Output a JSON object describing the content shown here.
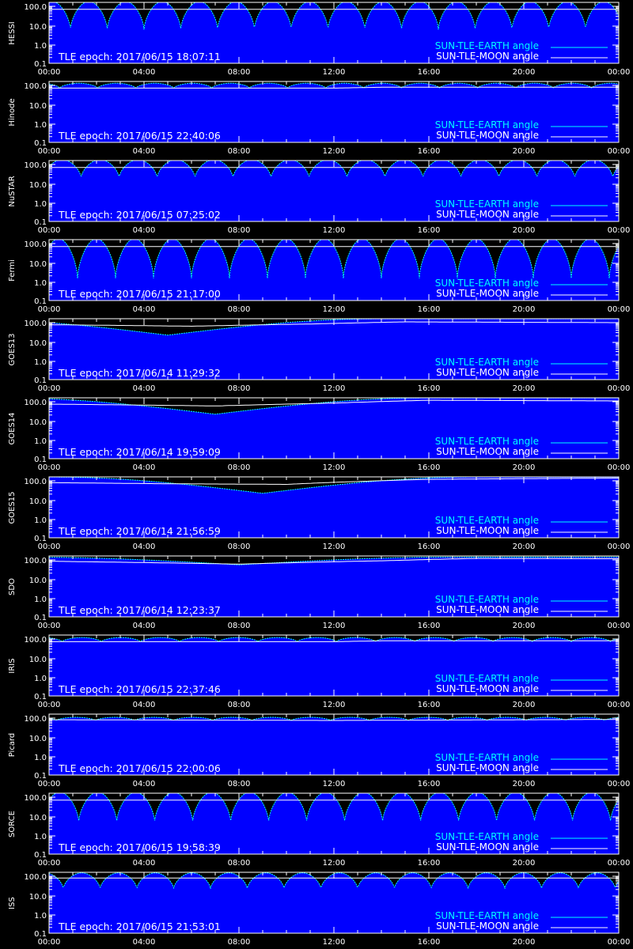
{
  "legend": {
    "earth_label": "SUN-TLE-EARTH angle",
    "moon_label": "SUN-TLE-MOON angle"
  },
  "colors": {
    "background": "#000000",
    "earth_fill": "#0000ff",
    "earth_edge": "#00ffff",
    "moon": "#ffffff",
    "axis": "#ffffff",
    "earth_label": "#00ffff",
    "moon_label": "#ffffff"
  },
  "chart_data": [
    {
      "type": "line",
      "scale": "log",
      "ylim": [
        0.1,
        180
      ],
      "xlim": [
        "00:00",
        "24:00"
      ],
      "ylabel": "HESSI",
      "epoch_text": "TLE epoch: 2017/06/15 18:07:11",
      "yticks": [
        "100.0",
        "10.0",
        "1.0",
        "0.1"
      ],
      "xticks": [
        "00:00",
        "04:00",
        "08:00",
        "12:00",
        "16:00",
        "20:00",
        "00:00"
      ],
      "earth": {
        "style": "orbital",
        "period_h": 1.55,
        "phase_h": 0.9,
        "min": 6,
        "max": 178
      },
      "moon": {
        "points": [
          [
            0,
            70
          ],
          [
            24,
            70
          ]
        ]
      }
    },
    {
      "type": "line",
      "scale": "log",
      "ylim": [
        0.1,
        180
      ],
      "xlim": [
        "00:00",
        "24:00"
      ],
      "ylabel": "Hinode",
      "epoch_text": "TLE epoch: 2017/06/15 22:40:06",
      "yticks": [
        "100.0",
        "10.0",
        "1.0",
        "0.1"
      ],
      "xticks": [
        "00:00",
        "04:00",
        "08:00",
        "12:00",
        "16:00",
        "20:00",
        "00:00"
      ],
      "earth": {
        "style": "orbital",
        "period_h": 1.6,
        "phase_h": 0.45,
        "min": 72,
        "max": 130
      },
      "moon": {
        "points": [
          [
            0,
            72
          ],
          [
            12,
            72
          ],
          [
            14,
            80
          ],
          [
            24,
            80
          ]
        ]
      }
    },
    {
      "type": "line",
      "scale": "log",
      "ylim": [
        0.1,
        180
      ],
      "xlim": [
        "00:00",
        "24:00"
      ],
      "ylabel": "NuSTAR",
      "epoch_text": "TLE epoch: 2017/06/15 07:25:02",
      "yticks": [
        "100.0",
        "10.0",
        "1.0",
        "0.1"
      ],
      "xticks": [
        "00:00",
        "04:00",
        "08:00",
        "12:00",
        "16:00",
        "20:00",
        "00:00"
      ],
      "earth": {
        "style": "orbital",
        "period_h": 1.6,
        "phase_h": 1.35,
        "min": 20,
        "max": 178
      },
      "moon": {
        "points": [
          [
            0,
            70
          ],
          [
            24,
            70
          ]
        ]
      }
    },
    {
      "type": "line",
      "scale": "log",
      "ylim": [
        0.1,
        180
      ],
      "xlim": [
        "00:00",
        "24:00"
      ],
      "ylabel": "Fermi",
      "epoch_text": "TLE epoch: 2017/06/15 21:17:00",
      "yticks": [
        "100.0",
        "10.0",
        "1.0",
        "0.1"
      ],
      "xticks": [
        "00:00",
        "04:00",
        "08:00",
        "12:00",
        "16:00",
        "20:00",
        "00:00"
      ],
      "earth": {
        "style": "orbital",
        "period_h": 1.6,
        "phase_h": 1.2,
        "min": 1.5,
        "max": 178
      },
      "moon": {
        "points": [
          [
            0,
            70
          ],
          [
            24,
            70
          ]
        ]
      }
    },
    {
      "type": "line",
      "scale": "log",
      "ylim": [
        0.1,
        180
      ],
      "xlim": [
        "00:00",
        "24:00"
      ],
      "ylabel": "GOES13",
      "epoch_text": "TLE epoch: 2017/06/14 11:29:32",
      "yticks": [
        "100.0",
        "10.0",
        "1.0",
        "0.1"
      ],
      "xticks": [
        "00:00",
        "04:00",
        "08:00",
        "12:00",
        "16:00",
        "20:00",
        "00:00"
      ],
      "earth": {
        "style": "diurnal",
        "trough_h": 5,
        "min": 22,
        "max": 160
      },
      "moon": {
        "points": [
          [
            0,
            78
          ],
          [
            6,
            65
          ],
          [
            11,
            85
          ],
          [
            15,
            110
          ],
          [
            24,
            100
          ]
        ]
      }
    },
    {
      "type": "line",
      "scale": "log",
      "ylim": [
        0.1,
        180
      ],
      "xlim": [
        "00:00",
        "24:00"
      ],
      "ylabel": "GOES14",
      "epoch_text": "TLE epoch: 2017/06/14 19:59:09",
      "yticks": [
        "100.0",
        "10.0",
        "1.0",
        "0.1"
      ],
      "xticks": [
        "00:00",
        "04:00",
        "08:00",
        "12:00",
        "16:00",
        "20:00",
        "00:00"
      ],
      "earth": {
        "style": "diurnal",
        "trough_h": 7,
        "min": 22,
        "max": 160
      },
      "moon": {
        "points": [
          [
            0,
            75
          ],
          [
            7,
            60
          ],
          [
            12,
            85
          ],
          [
            16,
            120
          ],
          [
            24,
            110
          ]
        ]
      }
    },
    {
      "type": "line",
      "scale": "log",
      "ylim": [
        0.1,
        180
      ],
      "xlim": [
        "00:00",
        "24:00"
      ],
      "ylabel": "GOES15",
      "epoch_text": "TLE epoch: 2017/06/14 21:56:59",
      "yticks": [
        "100.0",
        "10.0",
        "1.0",
        "0.1"
      ],
      "xticks": [
        "00:00",
        "04:00",
        "08:00",
        "12:00",
        "16:00",
        "20:00",
        "00:00"
      ],
      "earth": {
        "style": "diurnal",
        "trough_h": 9,
        "min": 22,
        "max": 160
      },
      "moon": {
        "points": [
          [
            0,
            80
          ],
          [
            5,
            70
          ],
          [
            10,
            65
          ],
          [
            16,
            120
          ],
          [
            24,
            140
          ]
        ]
      }
    },
    {
      "type": "line",
      "scale": "log",
      "ylim": [
        0.1,
        180
      ],
      "xlim": [
        "00:00",
        "24:00"
      ],
      "ylabel": "SDO",
      "epoch_text": "TLE epoch: 2017/06/14 12:23:37",
      "yticks": [
        "100.0",
        "10.0",
        "1.0",
        "0.1"
      ],
      "xticks": [
        "00:00",
        "04:00",
        "08:00",
        "12:00",
        "16:00",
        "20:00",
        "00:00"
      ],
      "earth": {
        "style": "diurnal",
        "trough_h": 8,
        "min": 55,
        "max": 140
      },
      "moon": {
        "points": [
          [
            0,
            85
          ],
          [
            8,
            60
          ],
          [
            14,
            90
          ],
          [
            18,
            120
          ],
          [
            24,
            115
          ]
        ]
      }
    },
    {
      "type": "line",
      "scale": "log",
      "ylim": [
        0.1,
        180
      ],
      "xlim": [
        "00:00",
        "24:00"
      ],
      "ylabel": "IRIS",
      "epoch_text": "TLE epoch: 2017/06/15 22:37:46",
      "yticks": [
        "100.0",
        "10.0",
        "1.0",
        "0.1"
      ],
      "xticks": [
        "00:00",
        "04:00",
        "08:00",
        "12:00",
        "16:00",
        "20:00",
        "00:00"
      ],
      "earth": {
        "style": "orbital",
        "period_h": 1.65,
        "phase_h": 0.55,
        "min": 72,
        "max": 120
      },
      "moon": {
        "points": [
          [
            0,
            72
          ],
          [
            12,
            72
          ],
          [
            14,
            80
          ],
          [
            24,
            80
          ]
        ]
      }
    },
    {
      "type": "line",
      "scale": "log",
      "ylim": [
        0.1,
        180
      ],
      "xlim": [
        "00:00",
        "24:00"
      ],
      "ylabel": "Picard",
      "epoch_text": "TLE epoch: 2017/06/15 22:00:06",
      "yticks": [
        "100.0",
        "10.0",
        "1.0",
        "0.1"
      ],
      "xticks": [
        "00:00",
        "04:00",
        "08:00",
        "12:00",
        "16:00",
        "20:00",
        "00:00"
      ],
      "earth": {
        "style": "orbital",
        "period_h": 1.65,
        "phase_h": 0.3,
        "min": 75,
        "max": 110
      },
      "moon": {
        "points": [
          [
            0,
            82
          ],
          [
            12,
            75
          ],
          [
            24,
            85
          ]
        ]
      }
    },
    {
      "type": "line",
      "scale": "log",
      "ylim": [
        0.1,
        180
      ],
      "xlim": [
        "00:00",
        "24:00"
      ],
      "ylabel": "SORCE",
      "epoch_text": "TLE epoch: 2017/06/15 19:58:39",
      "yticks": [
        "100.0",
        "10.0",
        "1.0",
        "0.1"
      ],
      "xticks": [
        "00:00",
        "04:00",
        "08:00",
        "12:00",
        "16:00",
        "20:00",
        "00:00"
      ],
      "earth": {
        "style": "orbital",
        "period_h": 1.6,
        "phase_h": 1.25,
        "min": 5,
        "max": 178
      },
      "moon": {
        "points": [
          [
            0,
            70
          ],
          [
            24,
            70
          ]
        ]
      }
    },
    {
      "type": "line",
      "scale": "log",
      "ylim": [
        0.1,
        180
      ],
      "xlim": [
        "00:00",
        "24:00"
      ],
      "ylabel": "ISS",
      "epoch_text": "TLE epoch: 2017/06/15 21:53:01",
      "yticks": [
        "100.0",
        "10.0",
        "1.0",
        "0.1"
      ],
      "xticks": [
        "00:00",
        "04:00",
        "08:00",
        "12:00",
        "16:00",
        "20:00",
        "00:00"
      ],
      "earth": {
        "style": "orbital",
        "period_h": 1.55,
        "phase_h": 0.6,
        "min": 22,
        "max": 150
      },
      "moon": {
        "points": [
          [
            0,
            80
          ],
          [
            24,
            80
          ]
        ]
      }
    }
  ]
}
